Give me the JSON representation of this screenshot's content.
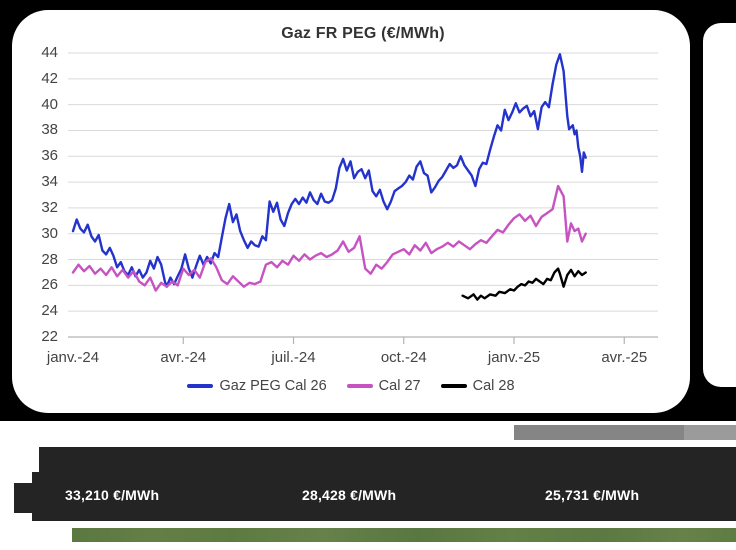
{
  "ticker": {
    "values": [
      "33,210 €/MWh",
      "28,428 €/MWh",
      "25,731 €/MWh"
    ]
  },
  "colors": {
    "page_top_bg": "#000000",
    "card_bg": "#ffffff",
    "grid": "#d9d9d9",
    "axis": "#b3b3b3",
    "axis_text": "#444444",
    "title_text": "#333333",
    "ticker_bg": "#242424",
    "ticker_text": "#ffffff",
    "gray_strip": "#858585",
    "green_strip": "#5f7d44",
    "series_cal26": "#2433cc",
    "series_cal27": "#c653c1",
    "series_cal28": "#000000"
  },
  "chart_data": {
    "type": "line",
    "title": "Gaz FR PEG (€/MWh)",
    "xlabel": "",
    "ylabel": "",
    "ylim": [
      22,
      44
    ],
    "grid": true,
    "legend_position": "bottom",
    "x_unit": "months since Jan 2024",
    "ytick_labels": [
      "44",
      "42",
      "40",
      "38",
      "36",
      "34",
      "32",
      "30",
      "28",
      "26",
      "24",
      "22"
    ],
    "xticks": [
      {
        "label": "janv.-24",
        "month": 0
      },
      {
        "label": "avr.-24",
        "month": 3
      },
      {
        "label": "juil.-24",
        "month": 6
      },
      {
        "label": "oct.-24",
        "month": 9
      },
      {
        "label": "janv.-25",
        "month": 12
      },
      {
        "label": "avr.-25",
        "month": 15
      }
    ],
    "series": [
      {
        "name": "Gaz PEG Cal 26",
        "color": "#2433cc",
        "points": [
          [
            0.0,
            30.2
          ],
          [
            0.1,
            31.1
          ],
          [
            0.2,
            30.4
          ],
          [
            0.3,
            30.1
          ],
          [
            0.4,
            30.7
          ],
          [
            0.5,
            29.8
          ],
          [
            0.6,
            29.4
          ],
          [
            0.7,
            29.9
          ],
          [
            0.8,
            28.7
          ],
          [
            0.9,
            28.4
          ],
          [
            1.0,
            28.9
          ],
          [
            1.1,
            28.3
          ],
          [
            1.2,
            27.4
          ],
          [
            1.3,
            27.8
          ],
          [
            1.4,
            27.1
          ],
          [
            1.5,
            26.8
          ],
          [
            1.6,
            27.4
          ],
          [
            1.7,
            26.7
          ],
          [
            1.8,
            27.2
          ],
          [
            1.9,
            26.6
          ],
          [
            2.0,
            27.0
          ],
          [
            2.1,
            27.9
          ],
          [
            2.2,
            27.3
          ],
          [
            2.3,
            28.2
          ],
          [
            2.4,
            27.6
          ],
          [
            2.5,
            26.3
          ],
          [
            2.55,
            25.9
          ],
          [
            2.65,
            26.6
          ],
          [
            2.75,
            26.1
          ],
          [
            2.85,
            26.7
          ],
          [
            2.95,
            27.3
          ],
          [
            3.05,
            28.4
          ],
          [
            3.15,
            27.3
          ],
          [
            3.25,
            26.6
          ],
          [
            3.35,
            27.5
          ],
          [
            3.45,
            28.3
          ],
          [
            3.55,
            27.6
          ],
          [
            3.65,
            28.2
          ],
          [
            3.75,
            27.7
          ],
          [
            3.85,
            28.5
          ],
          [
            3.95,
            28.2
          ],
          [
            4.05,
            29.7
          ],
          [
            4.15,
            31.2
          ],
          [
            4.25,
            32.3
          ],
          [
            4.35,
            30.9
          ],
          [
            4.45,
            31.5
          ],
          [
            4.55,
            30.2
          ],
          [
            4.65,
            29.5
          ],
          [
            4.75,
            28.9
          ],
          [
            4.85,
            29.4
          ],
          [
            4.95,
            29.1
          ],
          [
            5.05,
            29.0
          ],
          [
            5.15,
            29.8
          ],
          [
            5.25,
            29.5
          ],
          [
            5.35,
            32.5
          ],
          [
            5.45,
            31.7
          ],
          [
            5.55,
            32.4
          ],
          [
            5.65,
            31.1
          ],
          [
            5.75,
            30.6
          ],
          [
            5.85,
            31.6
          ],
          [
            5.95,
            32.3
          ],
          [
            6.05,
            32.7
          ],
          [
            6.15,
            32.3
          ],
          [
            6.25,
            32.8
          ],
          [
            6.35,
            32.4
          ],
          [
            6.45,
            33.2
          ],
          [
            6.55,
            32.6
          ],
          [
            6.65,
            32.3
          ],
          [
            6.75,
            33.1
          ],
          [
            6.85,
            32.5
          ],
          [
            6.95,
            32.4
          ],
          [
            7.05,
            32.6
          ],
          [
            7.15,
            33.5
          ],
          [
            7.25,
            35.1
          ],
          [
            7.35,
            35.8
          ],
          [
            7.45,
            34.9
          ],
          [
            7.55,
            35.6
          ],
          [
            7.65,
            34.3
          ],
          [
            7.75,
            34.8
          ],
          [
            7.85,
            35.0
          ],
          [
            7.95,
            34.3
          ],
          [
            8.05,
            34.9
          ],
          [
            8.15,
            33.3
          ],
          [
            8.25,
            32.9
          ],
          [
            8.35,
            33.4
          ],
          [
            8.45,
            32.5
          ],
          [
            8.55,
            31.9
          ],
          [
            8.65,
            32.5
          ],
          [
            8.75,
            33.3
          ],
          [
            8.85,
            33.5
          ],
          [
            8.95,
            33.7
          ],
          [
            9.05,
            34.0
          ],
          [
            9.15,
            34.5
          ],
          [
            9.25,
            34.2
          ],
          [
            9.35,
            35.2
          ],
          [
            9.45,
            35.6
          ],
          [
            9.55,
            34.7
          ],
          [
            9.65,
            34.5
          ],
          [
            9.75,
            33.2
          ],
          [
            9.85,
            33.6
          ],
          [
            9.95,
            34.1
          ],
          [
            10.05,
            34.4
          ],
          [
            10.15,
            34.9
          ],
          [
            10.25,
            35.4
          ],
          [
            10.35,
            35.1
          ],
          [
            10.45,
            35.3
          ],
          [
            10.55,
            36.0
          ],
          [
            10.65,
            35.3
          ],
          [
            10.75,
            34.9
          ],
          [
            10.85,
            34.5
          ],
          [
            10.95,
            33.7
          ],
          [
            11.05,
            35.0
          ],
          [
            11.15,
            35.5
          ],
          [
            11.25,
            35.4
          ],
          [
            11.35,
            36.5
          ],
          [
            11.45,
            37.5
          ],
          [
            11.55,
            38.4
          ],
          [
            11.65,
            38.0
          ],
          [
            11.75,
            39.6
          ],
          [
            11.85,
            38.8
          ],
          [
            11.95,
            39.4
          ],
          [
            12.05,
            40.1
          ],
          [
            12.15,
            39.4
          ],
          [
            12.25,
            39.7
          ],
          [
            12.35,
            39.9
          ],
          [
            12.45,
            39.1
          ],
          [
            12.55,
            39.5
          ],
          [
            12.65,
            38.1
          ],
          [
            12.75,
            39.8
          ],
          [
            12.85,
            40.2
          ],
          [
            12.95,
            39.8
          ],
          [
            13.05,
            41.6
          ],
          [
            13.15,
            43.1
          ],
          [
            13.25,
            43.9
          ],
          [
            13.35,
            42.6
          ],
          [
            13.45,
            39.1
          ],
          [
            13.5,
            38.1
          ],
          [
            13.6,
            38.4
          ],
          [
            13.65,
            37.7
          ],
          [
            13.7,
            38.0
          ],
          [
            13.75,
            36.7
          ],
          [
            13.8,
            36.0
          ],
          [
            13.85,
            34.8
          ],
          [
            13.9,
            36.3
          ],
          [
            13.95,
            35.9
          ]
        ]
      },
      {
        "name": "Cal 27",
        "color": "#c653c1",
        "points": [
          [
            0.0,
            27.0
          ],
          [
            0.15,
            27.6
          ],
          [
            0.3,
            27.1
          ],
          [
            0.45,
            27.5
          ],
          [
            0.6,
            26.9
          ],
          [
            0.75,
            27.3
          ],
          [
            0.9,
            26.8
          ],
          [
            1.05,
            27.4
          ],
          [
            1.2,
            26.7
          ],
          [
            1.35,
            27.2
          ],
          [
            1.5,
            26.6
          ],
          [
            1.65,
            27.1
          ],
          [
            1.8,
            26.3
          ],
          [
            1.95,
            26.0
          ],
          [
            2.1,
            26.6
          ],
          [
            2.25,
            25.6
          ],
          [
            2.4,
            26.2
          ],
          [
            2.55,
            25.9
          ],
          [
            2.7,
            26.3
          ],
          [
            2.85,
            26.0
          ],
          [
            3.0,
            27.3
          ],
          [
            3.15,
            26.8
          ],
          [
            3.3,
            27.2
          ],
          [
            3.45,
            26.6
          ],
          [
            3.6,
            27.8
          ],
          [
            3.75,
            28.1
          ],
          [
            3.9,
            27.4
          ],
          [
            4.05,
            26.4
          ],
          [
            4.2,
            26.1
          ],
          [
            4.35,
            26.7
          ],
          [
            4.5,
            26.3
          ],
          [
            4.65,
            25.9
          ],
          [
            4.8,
            26.2
          ],
          [
            4.95,
            26.1
          ],
          [
            5.1,
            26.3
          ],
          [
            5.25,
            27.6
          ],
          [
            5.4,
            27.8
          ],
          [
            5.55,
            27.4
          ],
          [
            5.7,
            27.9
          ],
          [
            5.85,
            27.6
          ],
          [
            6.0,
            28.3
          ],
          [
            6.15,
            27.9
          ],
          [
            6.3,
            28.4
          ],
          [
            6.45,
            28.0
          ],
          [
            6.6,
            28.3
          ],
          [
            6.75,
            28.5
          ],
          [
            6.9,
            28.2
          ],
          [
            7.05,
            28.4
          ],
          [
            7.2,
            28.7
          ],
          [
            7.35,
            29.4
          ],
          [
            7.5,
            28.6
          ],
          [
            7.65,
            28.9
          ],
          [
            7.8,
            29.8
          ],
          [
            7.95,
            27.3
          ],
          [
            8.1,
            26.9
          ],
          [
            8.25,
            27.6
          ],
          [
            8.4,
            27.3
          ],
          [
            8.55,
            27.8
          ],
          [
            8.7,
            28.4
          ],
          [
            8.85,
            28.6
          ],
          [
            9.0,
            28.8
          ],
          [
            9.15,
            28.4
          ],
          [
            9.3,
            29.1
          ],
          [
            9.45,
            28.7
          ],
          [
            9.6,
            29.3
          ],
          [
            9.75,
            28.5
          ],
          [
            9.9,
            28.8
          ],
          [
            10.05,
            29.0
          ],
          [
            10.2,
            29.3
          ],
          [
            10.35,
            29.0
          ],
          [
            10.5,
            29.4
          ],
          [
            10.65,
            29.1
          ],
          [
            10.8,
            28.8
          ],
          [
            10.95,
            29.2
          ],
          [
            11.1,
            29.5
          ],
          [
            11.25,
            29.3
          ],
          [
            11.4,
            29.8
          ],
          [
            11.55,
            30.3
          ],
          [
            11.7,
            30.1
          ],
          [
            11.85,
            30.7
          ],
          [
            12.0,
            31.2
          ],
          [
            12.15,
            31.5
          ],
          [
            12.3,
            31.0
          ],
          [
            12.45,
            31.4
          ],
          [
            12.6,
            30.6
          ],
          [
            12.75,
            31.3
          ],
          [
            12.9,
            31.6
          ],
          [
            13.05,
            31.9
          ],
          [
            13.2,
            33.7
          ],
          [
            13.35,
            32.9
          ],
          [
            13.45,
            29.4
          ],
          [
            13.55,
            30.8
          ],
          [
            13.65,
            30.2
          ],
          [
            13.75,
            30.4
          ],
          [
            13.85,
            29.4
          ],
          [
            13.95,
            30.0
          ]
        ]
      },
      {
        "name": "Cal 28",
        "color": "#000000",
        "points": [
          [
            10.6,
            25.2
          ],
          [
            10.75,
            25.0
          ],
          [
            10.9,
            25.3
          ],
          [
            11.0,
            24.9
          ],
          [
            11.1,
            25.2
          ],
          [
            11.2,
            25.0
          ],
          [
            11.35,
            25.3
          ],
          [
            11.5,
            25.2
          ],
          [
            11.6,
            25.5
          ],
          [
            11.75,
            25.4
          ],
          [
            11.9,
            25.7
          ],
          [
            12.0,
            25.6
          ],
          [
            12.1,
            25.9
          ],
          [
            12.2,
            26.1
          ],
          [
            12.3,
            26.0
          ],
          [
            12.4,
            26.3
          ],
          [
            12.5,
            26.2
          ],
          [
            12.6,
            26.5
          ],
          [
            12.7,
            26.3
          ],
          [
            12.8,
            26.1
          ],
          [
            12.9,
            26.5
          ],
          [
            13.0,
            26.4
          ],
          [
            13.1,
            27.0
          ],
          [
            13.2,
            27.3
          ],
          [
            13.25,
            26.9
          ],
          [
            13.35,
            25.9
          ],
          [
            13.45,
            26.8
          ],
          [
            13.55,
            27.2
          ],
          [
            13.65,
            26.7
          ],
          [
            13.75,
            27.1
          ],
          [
            13.85,
            26.8
          ],
          [
            13.95,
            27.0
          ]
        ]
      }
    ]
  }
}
